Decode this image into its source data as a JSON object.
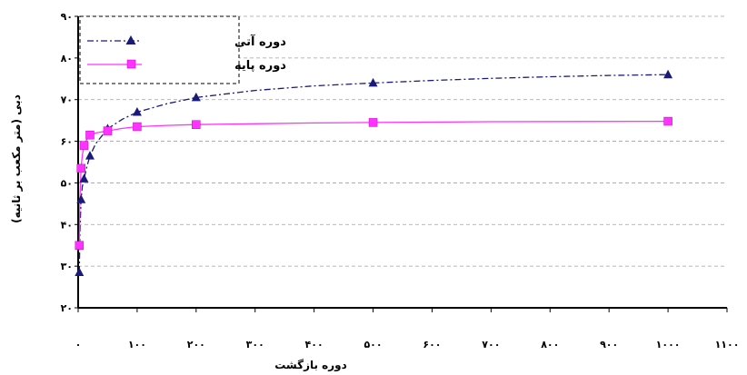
{
  "chart_data": {
    "type": "line",
    "xlabel": "دوره بازگشت",
    "ylabel": "دبی (متر مکعب بر ثانیه)",
    "xlim": [
      0,
      1100
    ],
    "ylim": [
      20,
      90
    ],
    "x_tick_labels": [
      "۰",
      "۱۰۰",
      "۲۰۰",
      "۳۰۰",
      "۴۰۰",
      "۵۰۰",
      "۶۰۰",
      "۷۰۰",
      "۸۰۰",
      "۹۰۰",
      "۱۰۰۰",
      "۱۱۰۰"
    ],
    "y_tick_labels": [
      "۲۰",
      "۳۰",
      "۴۰",
      "۵۰",
      "۶۰",
      "۷۰",
      "۸۰",
      "۹۰"
    ],
    "grid": "horizontal dashed",
    "legend_position": "top-left",
    "series": [
      {
        "name": "دوره آتی",
        "color": "#1a1a7a",
        "marker": "triangle",
        "line_style": "dash-dot",
        "points": [
          [
            2,
            28.5
          ],
          [
            5,
            46
          ],
          [
            10,
            51
          ],
          [
            20,
            56.5
          ],
          [
            50,
            63
          ],
          [
            100,
            67
          ],
          [
            200,
            70.5
          ],
          [
            500,
            74
          ],
          [
            1000,
            76
          ]
        ],
        "curve": [
          [
            2,
            28.5
          ],
          [
            3,
            38
          ],
          [
            5,
            46
          ],
          [
            7,
            49
          ],
          [
            10,
            51
          ],
          [
            15,
            54
          ],
          [
            20,
            56.5
          ],
          [
            30,
            59.5
          ],
          [
            50,
            63
          ],
          [
            75,
            65.3
          ],
          [
            100,
            67
          ],
          [
            150,
            69
          ],
          [
            200,
            70.5
          ],
          [
            300,
            72.2
          ],
          [
            400,
            73.3
          ],
          [
            500,
            74
          ],
          [
            600,
            74.6
          ],
          [
            700,
            75.1
          ],
          [
            800,
            75.5
          ],
          [
            900,
            75.8
          ],
          [
            1000,
            76
          ]
        ]
      },
      {
        "name": "دوره پایه",
        "color": "#ff33ff",
        "marker": "square",
        "line_style": "solid",
        "points": [
          [
            2,
            35
          ],
          [
            5,
            53.5
          ],
          [
            10,
            59
          ],
          [
            20,
            61.5
          ],
          [
            50,
            62.5
          ],
          [
            100,
            63.5
          ],
          [
            200,
            64
          ],
          [
            500,
            64.5
          ],
          [
            1000,
            64.8
          ]
        ],
        "curve": [
          [
            2,
            35
          ],
          [
            3,
            46
          ],
          [
            5,
            53.5
          ],
          [
            7,
            56.5
          ],
          [
            10,
            59
          ],
          [
            15,
            60.5
          ],
          [
            20,
            61.5
          ],
          [
            30,
            62
          ],
          [
            50,
            62.5
          ],
          [
            75,
            63.1
          ],
          [
            100,
            63.5
          ],
          [
            150,
            63.8
          ],
          [
            200,
            64
          ],
          [
            300,
            64.2
          ],
          [
            400,
            64.4
          ],
          [
            500,
            64.5
          ],
          [
            700,
            64.7
          ],
          [
            1000,
            64.8
          ]
        ]
      }
    ]
  }
}
